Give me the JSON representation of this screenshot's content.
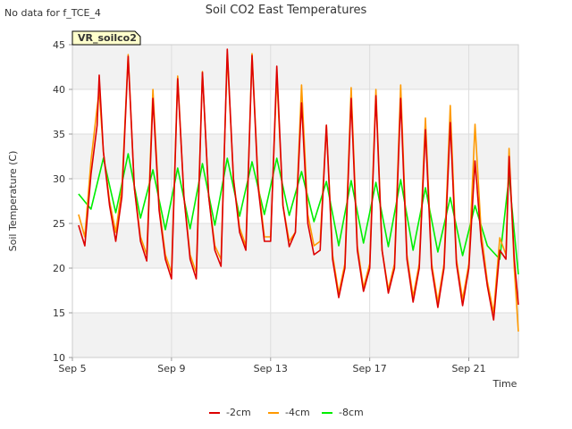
{
  "header": {
    "nodata_note": "No data for f_TCE_4",
    "badge": "VR_soilco2"
  },
  "chart_data": {
    "type": "line",
    "title": "Soil CO2 East Temperatures",
    "xlabel": "Time",
    "ylabel": "Soil Temperature (C)",
    "xlim": [
      "2023-09-05",
      "2023-09-23"
    ],
    "ylim": [
      10,
      45
    ],
    "y_ticks": [
      10,
      15,
      20,
      25,
      30,
      35,
      40,
      45
    ],
    "x_ticks": [
      {
        "date": "2023-09-05",
        "label": "Sep 5"
      },
      {
        "date": "2023-09-09",
        "label": "Sep 9"
      },
      {
        "date": "2023-09-13",
        "label": "Sep 13"
      },
      {
        "date": "2023-09-17",
        "label": "Sep 17"
      },
      {
        "date": "2023-09-21",
        "label": "Sep 21"
      }
    ],
    "grid": true,
    "legend_position": "bottom",
    "series": [
      {
        "name": "-2cm",
        "color": "#dd0000",
        "points": [
          [
            "2023-09-05 06:00",
            24.8
          ],
          [
            "2023-09-05 12:00",
            22.5
          ],
          [
            "2023-09-05 18:00",
            30.5
          ],
          [
            "2023-09-06 00:00",
            36.0
          ],
          [
            "2023-09-06 02:00",
            41.6
          ],
          [
            "2023-09-06 06:00",
            33.0
          ],
          [
            "2023-09-06 12:00",
            27.0
          ],
          [
            "2023-09-06 18:00",
            23.0
          ],
          [
            "2023-09-07 00:00",
            28.0
          ],
          [
            "2023-09-07 06:00",
            43.7
          ],
          [
            "2023-09-07 12:00",
            29.0
          ],
          [
            "2023-09-07 18:00",
            23.0
          ],
          [
            "2023-09-08 00:00",
            20.8
          ],
          [
            "2023-09-08 06:00",
            39.0
          ],
          [
            "2023-09-08 12:00",
            26.5
          ],
          [
            "2023-09-08 18:00",
            21.0
          ],
          [
            "2023-09-09 00:00",
            18.8
          ],
          [
            "2023-09-09 06:00",
            41.2
          ],
          [
            "2023-09-09 12:00",
            28.0
          ],
          [
            "2023-09-09 18:00",
            21.0
          ],
          [
            "2023-09-10 00:00",
            18.8
          ],
          [
            "2023-09-10 06:00",
            41.9
          ],
          [
            "2023-09-10 12:00",
            28.0
          ],
          [
            "2023-09-10 18:00",
            22.0
          ],
          [
            "2023-09-11 00:00",
            20.2
          ],
          [
            "2023-09-11 06:00",
            44.5
          ],
          [
            "2023-09-11 12:00",
            30.0
          ],
          [
            "2023-09-11 18:00",
            24.0
          ],
          [
            "2023-09-12 00:00",
            22.0
          ],
          [
            "2023-09-12 06:00",
            43.8
          ],
          [
            "2023-09-12 12:00",
            29.0
          ],
          [
            "2023-09-12 18:00",
            23.0
          ],
          [
            "2023-09-13 00:00",
            23.0
          ],
          [
            "2023-09-13 06:00",
            42.6
          ],
          [
            "2023-09-13 12:00",
            27.0
          ],
          [
            "2023-09-13 18:00",
            22.4
          ],
          [
            "2023-09-14 00:00",
            24.0
          ],
          [
            "2023-09-14 06:00",
            38.5
          ],
          [
            "2023-09-14 12:00",
            25.0
          ],
          [
            "2023-09-14 18:00",
            21.5
          ],
          [
            "2023-09-15 00:00",
            22.0
          ],
          [
            "2023-09-15 06:00",
            36.0
          ],
          [
            "2023-09-15 12:00",
            21.0
          ],
          [
            "2023-09-15 18:00",
            16.7
          ],
          [
            "2023-09-16 00:00",
            20.0
          ],
          [
            "2023-09-16 06:00",
            39.0
          ],
          [
            "2023-09-16 12:00",
            22.0
          ],
          [
            "2023-09-16 18:00",
            17.4
          ],
          [
            "2023-09-17 00:00",
            20.0
          ],
          [
            "2023-09-17 06:00",
            39.3
          ],
          [
            "2023-09-17 12:00",
            22.0
          ],
          [
            "2023-09-17 18:00",
            17.2
          ],
          [
            "2023-09-18 00:00",
            20.0
          ],
          [
            "2023-09-18 06:00",
            39.0
          ],
          [
            "2023-09-18 12:00",
            21.0
          ],
          [
            "2023-09-18 18:00",
            16.2
          ],
          [
            "2023-09-19 00:00",
            20.0
          ],
          [
            "2023-09-19 06:00",
            35.5
          ],
          [
            "2023-09-19 12:00",
            20.0
          ],
          [
            "2023-09-19 18:00",
            15.6
          ],
          [
            "2023-09-20 00:00",
            20.0
          ],
          [
            "2023-09-20 06:00",
            36.3
          ],
          [
            "2023-09-20 12:00",
            20.5
          ],
          [
            "2023-09-20 18:00",
            15.8
          ],
          [
            "2023-09-21 00:00",
            20.0
          ],
          [
            "2023-09-21 06:00",
            32.0
          ],
          [
            "2023-09-21 12:00",
            23.0
          ],
          [
            "2023-09-21 18:00",
            18.0
          ],
          [
            "2023-09-22 00:00",
            14.2
          ],
          [
            "2023-09-22 06:00",
            22.0
          ],
          [
            "2023-09-22 12:00",
            21.0
          ],
          [
            "2023-09-22 15:00",
            32.5
          ],
          [
            "2023-09-22 20:00",
            21.0
          ],
          [
            "2023-09-23 00:00",
            15.9
          ]
        ]
      },
      {
        "name": "-4cm",
        "color": "#ff9900",
        "points": [
          [
            "2023-09-05 06:00",
            26.0
          ],
          [
            "2023-09-05 12:00",
            23.5
          ],
          [
            "2023-09-05 18:00",
            32.0
          ],
          [
            "2023-09-06 00:00",
            38.0
          ],
          [
            "2023-09-06 02:00",
            39.8
          ],
          [
            "2023-09-06 06:00",
            33.0
          ],
          [
            "2023-09-06 12:00",
            27.5
          ],
          [
            "2023-09-06 18:00",
            24.0
          ],
          [
            "2023-09-07 00:00",
            29.0
          ],
          [
            "2023-09-07 06:00",
            43.9
          ],
          [
            "2023-09-07 12:00",
            29.0
          ],
          [
            "2023-09-07 18:00",
            23.5
          ],
          [
            "2023-09-08 00:00",
            21.5
          ],
          [
            "2023-09-08 06:00",
            40.0
          ],
          [
            "2023-09-08 12:00",
            27.0
          ],
          [
            "2023-09-08 18:00",
            21.5
          ],
          [
            "2023-09-09 00:00",
            19.5
          ],
          [
            "2023-09-09 06:00",
            41.5
          ],
          [
            "2023-09-09 12:00",
            28.0
          ],
          [
            "2023-09-09 18:00",
            21.5
          ],
          [
            "2023-09-10 00:00",
            19.5
          ],
          [
            "2023-09-10 06:00",
            42.0
          ],
          [
            "2023-09-10 12:00",
            28.0
          ],
          [
            "2023-09-10 18:00",
            22.5
          ],
          [
            "2023-09-11 00:00",
            21.0
          ],
          [
            "2023-09-11 06:00",
            44.0
          ],
          [
            "2023-09-11 12:00",
            30.0
          ],
          [
            "2023-09-11 18:00",
            24.5
          ],
          [
            "2023-09-12 00:00",
            22.5
          ],
          [
            "2023-09-12 06:00",
            44.0
          ],
          [
            "2023-09-12 12:00",
            29.5
          ],
          [
            "2023-09-12 18:00",
            23.5
          ],
          [
            "2023-09-13 00:00",
            23.5
          ],
          [
            "2023-09-13 06:00",
            41.5
          ],
          [
            "2023-09-13 12:00",
            27.0
          ],
          [
            "2023-09-13 18:00",
            23.0
          ],
          [
            "2023-09-14 00:00",
            24.0
          ],
          [
            "2023-09-14 06:00",
            40.5
          ],
          [
            "2023-09-14 12:00",
            26.0
          ],
          [
            "2023-09-14 18:00",
            22.5
          ],
          [
            "2023-09-15 00:00",
            23.0
          ],
          [
            "2023-09-15 06:00",
            36.0
          ],
          [
            "2023-09-15 12:00",
            21.5
          ],
          [
            "2023-09-15 18:00",
            17.2
          ],
          [
            "2023-09-16 00:00",
            20.5
          ],
          [
            "2023-09-16 06:00",
            40.2
          ],
          [
            "2023-09-16 12:00",
            22.5
          ],
          [
            "2023-09-16 18:00",
            17.8
          ],
          [
            "2023-09-17 00:00",
            20.5
          ],
          [
            "2023-09-17 06:00",
            40.0
          ],
          [
            "2023-09-17 12:00",
            22.0
          ],
          [
            "2023-09-17 18:00",
            17.6
          ],
          [
            "2023-09-18 00:00",
            20.5
          ],
          [
            "2023-09-18 06:00",
            40.5
          ],
          [
            "2023-09-18 12:00",
            21.5
          ],
          [
            "2023-09-18 18:00",
            16.8
          ],
          [
            "2023-09-19 00:00",
            20.5
          ],
          [
            "2023-09-19 06:00",
            36.8
          ],
          [
            "2023-09-19 12:00",
            20.5
          ],
          [
            "2023-09-19 18:00",
            16.2
          ],
          [
            "2023-09-20 00:00",
            20.5
          ],
          [
            "2023-09-20 06:00",
            38.2
          ],
          [
            "2023-09-20 12:00",
            21.0
          ],
          [
            "2023-09-20 18:00",
            16.5
          ],
          [
            "2023-09-21 00:00",
            20.5
          ],
          [
            "2023-09-21 06:00",
            36.1
          ],
          [
            "2023-09-21 12:00",
            24.0
          ],
          [
            "2023-09-21 18:00",
            18.5
          ],
          [
            "2023-09-22 00:00",
            15.0
          ],
          [
            "2023-09-22 06:00",
            23.4
          ],
          [
            "2023-09-22 12:00",
            21.5
          ],
          [
            "2023-09-22 15:00",
            33.4
          ],
          [
            "2023-09-22 20:00",
            20.0
          ],
          [
            "2023-09-23 00:00",
            12.9
          ]
        ]
      },
      {
        "name": "-8cm",
        "color": "#00ee00",
        "points": [
          [
            "2023-09-05 06:00",
            28.3
          ],
          [
            "2023-09-05 18:00",
            26.6
          ],
          [
            "2023-09-06 06:00",
            32.3
          ],
          [
            "2023-09-06 18:00",
            26.2
          ],
          [
            "2023-09-07 06:00",
            32.8
          ],
          [
            "2023-09-07 18:00",
            25.6
          ],
          [
            "2023-09-08 06:00",
            31.0
          ],
          [
            "2023-09-08 18:00",
            24.3
          ],
          [
            "2023-09-09 06:00",
            31.2
          ],
          [
            "2023-09-09 18:00",
            24.4
          ],
          [
            "2023-09-10 06:00",
            31.7
          ],
          [
            "2023-09-10 18:00",
            24.8
          ],
          [
            "2023-09-11 06:00",
            32.3
          ],
          [
            "2023-09-11 18:00",
            25.8
          ],
          [
            "2023-09-12 06:00",
            31.9
          ],
          [
            "2023-09-12 18:00",
            26.0
          ],
          [
            "2023-09-13 06:00",
            32.3
          ],
          [
            "2023-09-13 18:00",
            25.9
          ],
          [
            "2023-09-14 06:00",
            30.8
          ],
          [
            "2023-09-14 18:00",
            25.2
          ],
          [
            "2023-09-15 06:00",
            29.7
          ],
          [
            "2023-09-15 18:00",
            22.5
          ],
          [
            "2023-09-16 06:00",
            29.8
          ],
          [
            "2023-09-16 18:00",
            22.8
          ],
          [
            "2023-09-17 06:00",
            29.6
          ],
          [
            "2023-09-17 18:00",
            22.4
          ],
          [
            "2023-09-18 06:00",
            29.9
          ],
          [
            "2023-09-18 18:00",
            22.0
          ],
          [
            "2023-09-19 06:00",
            29.0
          ],
          [
            "2023-09-19 18:00",
            21.8
          ],
          [
            "2023-09-20 06:00",
            27.9
          ],
          [
            "2023-09-20 18:00",
            21.4
          ],
          [
            "2023-09-21 06:00",
            27.0
          ],
          [
            "2023-09-21 18:00",
            22.5
          ],
          [
            "2023-09-22 06:00",
            21.0
          ],
          [
            "2023-09-22 15:00",
            30.3
          ],
          [
            "2023-09-22 20:00",
            24.0
          ],
          [
            "2023-09-23 00:00",
            19.3
          ]
        ]
      }
    ]
  }
}
